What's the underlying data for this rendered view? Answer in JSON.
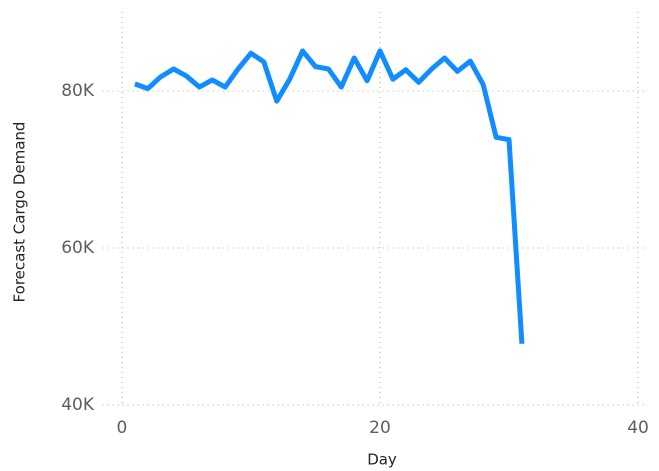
{
  "chart_data": {
    "type": "line",
    "x_label": "Day",
    "y_label": "Forecast Cargo Demand",
    "series": [
      {
        "name": "Forecast Cargo Demand",
        "color": "#118DFF",
        "x": [
          1,
          2,
          3,
          4,
          5,
          6,
          7,
          8,
          9,
          10,
          11,
          12,
          13,
          14,
          15,
          16,
          17,
          18,
          19,
          20,
          21,
          22,
          23,
          24,
          25,
          26,
          27,
          28,
          29,
          30,
          31
        ],
        "values": [
          80900,
          80300,
          81800,
          82800,
          81900,
          80500,
          81400,
          80500,
          82800,
          84800,
          83700,
          78700,
          81500,
          85100,
          83100,
          82800,
          80500,
          84200,
          81300,
          85100,
          81500,
          82700,
          81100,
          82800,
          84200,
          82500,
          83800,
          80800,
          74100,
          73800,
          47800
        ]
      }
    ],
    "xlim": [
      -1.5,
      40.5
    ],
    "xticks": [
      0,
      20,
      40
    ],
    "ylim": [
      40000,
      89000
    ],
    "yticks": [
      {
        "value": 40000,
        "label": "40K"
      },
      {
        "value": 60000,
        "label": "60K"
      },
      {
        "value": 80000,
        "label": "80K"
      }
    ],
    "grid": true
  }
}
